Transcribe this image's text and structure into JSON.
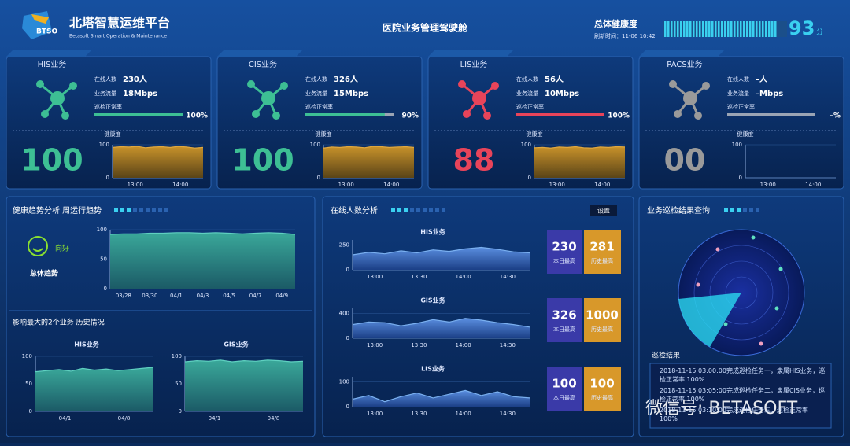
{
  "header": {
    "logo": "BTSO",
    "title": "北塔智慧运维平台",
    "subtitle": "Betasoft Smart Operation & Maintenance",
    "dashboard": "医院业务管理驾驶舱",
    "health_label": "总体健康度",
    "refresh": "刷新时间：11-06 10:42",
    "score": 93,
    "score_unit": "分"
  },
  "cards": [
    {
      "name": "HIS业务",
      "color": "#3dbf94",
      "online_label": "在线人数",
      "online": "230人",
      "traffic_label": "业务流量",
      "traffic": "18Mbps",
      "inspect_label": "巡检正常率",
      "inspect_rate": 100,
      "inspect_rate_label": "100%",
      "health_label": "健康度",
      "health": 100,
      "chart": {
        "ylim": [
          0,
          100
        ],
        "yticks": [
          0,
          100
        ],
        "xlabels": [
          "13:00",
          "14:00"
        ],
        "values": [
          92,
          94,
          93,
          95,
          91,
          93,
          94,
          92,
          95,
          93,
          90,
          92
        ]
      }
    },
    {
      "name": "CIS业务",
      "color": "#3dbf94",
      "online_label": "在线人数",
      "online": "326人",
      "traffic_label": "业务流量",
      "traffic": "15Mbps",
      "inspect_label": "巡检正常率",
      "inspect_rate": 90,
      "inspect_rate_label": "90%",
      "health_label": "健康度",
      "health": 100,
      "chart": {
        "ylim": [
          0,
          100
        ],
        "yticks": [
          0,
          100
        ],
        "xlabels": [
          "13:00",
          "14:00"
        ],
        "values": [
          90,
          93,
          92,
          94,
          93,
          91,
          95,
          94,
          92,
          93,
          94,
          92
        ]
      }
    },
    {
      "name": "LIS业务",
      "color": "#e8445a",
      "online_label": "在线人数",
      "online": "56人",
      "traffic_label": "业务流量",
      "traffic": "10Mbps",
      "inspect_label": "巡检正常率",
      "inspect_rate": 100,
      "inspect_rate_label": "100%",
      "health_label": "健康度",
      "health": 88,
      "chart": {
        "ylim": [
          0,
          100
        ],
        "yticks": [
          0,
          100
        ],
        "xlabels": [
          "13:00",
          "14:00"
        ],
        "values": [
          91,
          92,
          90,
          93,
          92,
          94,
          91,
          90,
          93,
          92,
          94,
          93
        ]
      }
    },
    {
      "name": "PACS业务",
      "color": "#9a9a9a",
      "online_label": "在线人数",
      "online": "–人",
      "traffic_label": "业务流量",
      "traffic": "–Mbps",
      "inspect_label": "巡检正常率",
      "inspect_rate": 0,
      "inspect_rate_label": "–%",
      "health_label": "健康度",
      "health": 0,
      "health_text": "00",
      "chart": {
        "ylim": [
          0,
          100
        ],
        "yticks": [
          0,
          100
        ],
        "xlabels": [
          "13:00",
          "14:00"
        ],
        "values": []
      }
    }
  ],
  "trend": {
    "title": "健康趋势分析 周运行趋势",
    "status": "向好",
    "status_label": "总体趋势",
    "chart": {
      "ylim": [
        0,
        100
      ],
      "yticks": [
        0,
        50,
        100
      ],
      "xlabels": [
        "03/28",
        "03/30",
        "04/1",
        "04/3",
        "04/5",
        "04/7",
        "04/9"
      ],
      "values": [
        92,
        93,
        93,
        94,
        94,
        95,
        95,
        94,
        95,
        94,
        93,
        94,
        95,
        94,
        92
      ]
    },
    "impact_title": "影响最大的2个业务 历史情况",
    "impact": [
      {
        "name": "HIS业务",
        "chart": {
          "ylim": [
            0,
            100
          ],
          "yticks": [
            0,
            50,
            100
          ],
          "xlabels": [
            "04/1",
            "04/8"
          ],
          "values": [
            72,
            74,
            76,
            73,
            78,
            75,
            77,
            74,
            76,
            78,
            80
          ]
        }
      },
      {
        "name": "GIS业务",
        "chart": {
          "ylim": [
            0,
            100
          ],
          "yticks": [
            0,
            50,
            100
          ],
          "xlabels": [
            "04/1",
            "04/8"
          ],
          "values": [
            90,
            92,
            91,
            93,
            90,
            92,
            91,
            93,
            92,
            90,
            91
          ]
        }
      }
    ]
  },
  "online": {
    "title": "在线人数分析",
    "button": "设置",
    "rows": [
      {
        "name": "HIS业务",
        "chart": {
          "ylim": [
            0,
            300
          ],
          "yticks": [
            0,
            250
          ],
          "xlabels": [
            "13:00",
            "13:30",
            "14:00",
            "14:30"
          ],
          "values": [
            150,
            175,
            160,
            190,
            170,
            200,
            185,
            210,
            225,
            205,
            180,
            170
          ]
        },
        "today": 230,
        "today_label": "本日最高",
        "history": 281,
        "history_label": "历史最高"
      },
      {
        "name": "GIS业务",
        "chart": {
          "ylim": [
            0,
            480
          ],
          "yticks": [
            0,
            400
          ],
          "xlabels": [
            "13:00",
            "13:30",
            "14:00",
            "14:30"
          ],
          "values": [
            220,
            260,
            250,
            200,
            240,
            300,
            260,
            320,
            290,
            250,
            220,
            180
          ]
        },
        "today": 326,
        "today_label": "本日最高",
        "history": 1000,
        "history_label": "历史最高"
      },
      {
        "name": "LIS业务",
        "chart": {
          "ylim": [
            0,
            120
          ],
          "yticks": [
            0,
            100
          ],
          "xlabels": [
            "13:00",
            "13:30",
            "14:00",
            "14:30"
          ],
          "values": [
            30,
            45,
            20,
            40,
            55,
            35,
            50,
            65,
            45,
            60,
            40,
            35
          ]
        },
        "today": 100,
        "today_label": "本日最高",
        "history": 100,
        "history_label": "历史最高"
      }
    ]
  },
  "inspection": {
    "title": "业务巡检结果查询",
    "result_label": "巡检结果",
    "logs": [
      "2018-11-15 03:00:00完成巡检任务一，隶属HIS业务，巡检正常率 100%",
      "2018-11-15 03:05:00完成巡检任务二，隶属CIS业务，巡检正常率 100%",
      "2018-11-15 03:10:00完成巡检任务三，巡检正常率 100%"
    ]
  },
  "watermark": "微信号: BETASOFT"
}
